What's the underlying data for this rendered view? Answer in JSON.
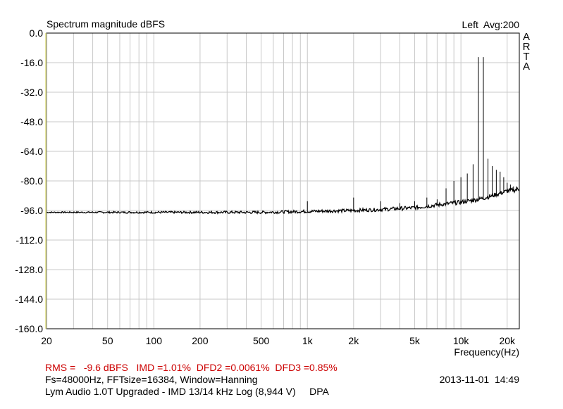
{
  "chart_data": {
    "type": "line",
    "title": "Spectrum magnitude dBFS",
    "top_right_label": "Left  Avg:200",
    "side_logo": [
      "A",
      "R",
      "T",
      "A"
    ],
    "xlabel": "Frequency(Hz)",
    "ylabel": "",
    "x_scale": "log",
    "xlim": [
      20,
      24000
    ],
    "ylim": [
      -160,
      0
    ],
    "grid": true,
    "y_ticks": [
      0,
      -16,
      -32,
      -48,
      -64,
      -80,
      -96,
      -112,
      -128,
      -144,
      -160
    ],
    "y_tick_labels": [
      "0.0",
      "-16.0",
      "-32.0",
      "-48.0",
      "-64.0",
      "-80.0",
      "-96.0",
      "-112.0",
      "-128.0",
      "-144.0",
      "-160.0"
    ],
    "x_ticks": [
      20,
      50,
      100,
      200,
      500,
      1000,
      2000,
      5000,
      10000,
      20000
    ],
    "x_tick_labels": [
      "20",
      "50",
      "100",
      "200",
      "500",
      "1k",
      "2k",
      "5k",
      "10k",
      "20k"
    ],
    "series": [
      {
        "type": "line",
        "noise_floor": {
          "x": [
            20,
            50,
            100,
            200,
            500,
            1000,
            2000,
            3000,
            5000,
            7000,
            10000,
            13000,
            16000,
            20000,
            24000
          ],
          "y": [
            -97,
            -97,
            -97,
            -97,
            -97,
            -96.5,
            -96,
            -95.5,
            -94.5,
            -93,
            -91.5,
            -90,
            -88,
            -85.5,
            -84.5
          ]
        },
        "peaks": {
          "x": [
            1000,
            2000,
            3000,
            4000,
            5000,
            6000,
            7000,
            8000,
            9000,
            10000,
            11000,
            12000,
            13000,
            14000,
            15000,
            16000,
            17000,
            18000,
            19000,
            20000,
            21000,
            22000,
            23000,
            24000
          ],
          "y": [
            -91,
            -89,
            -91,
            -92,
            -91,
            -89,
            -90,
            -84,
            -80,
            -78,
            -76,
            -71,
            -13,
            -13,
            -68,
            -72,
            -74,
            -75,
            -78,
            -81,
            -82,
            -83,
            -83,
            -82
          ]
        }
      }
    ]
  },
  "footer": {
    "stats": "RMS =   -9.6 dBFS   IMD =1.01%  DFD2 =0.0061%  DFD3 =0.85%",
    "settings": "Fs=48000Hz, FFTsize=16384, Window=Hanning",
    "timestamp": "2013-11-01  14:49",
    "description": "Lym Audio 1.0T Upgraded - IMD 13/14 kHz Log (8,944 V)     DPA"
  },
  "colors": {
    "grid": "#c8c8c8",
    "trace": "#000000",
    "stats_text": "#cc0000",
    "axis_left": "#e6e6a0"
  }
}
